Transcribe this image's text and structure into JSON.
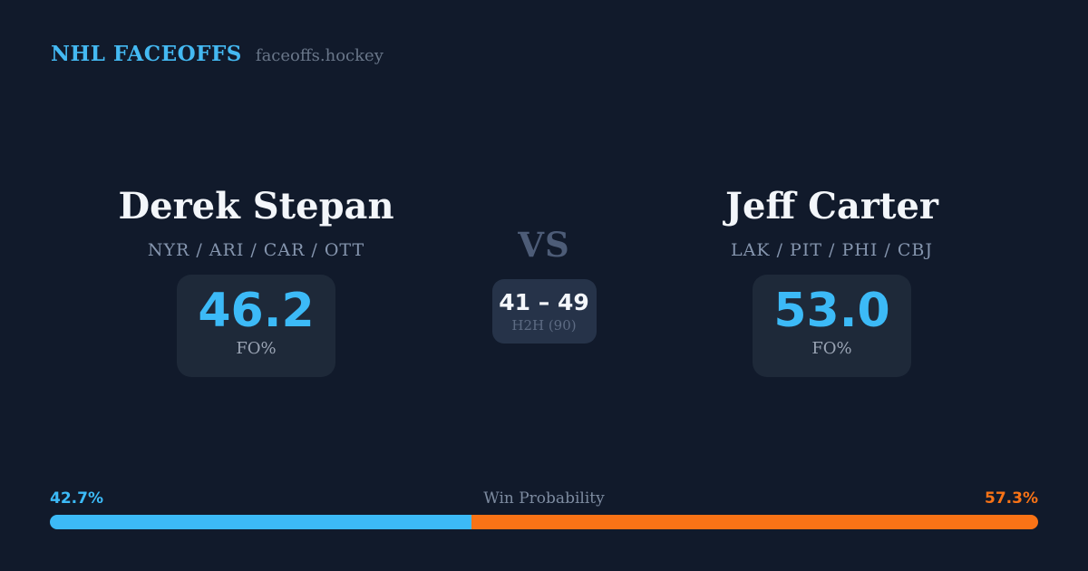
{
  "header": {
    "brand": "NHL FACEOFFS",
    "site": "faceoffs.hockey"
  },
  "matchup": {
    "player_left": {
      "name": "Derek Stepan",
      "teams": "NYR / ARI / CAR / OTT",
      "fo_value": "46.2",
      "fo_label": "FO%"
    },
    "vs_label": "VS",
    "h2h": {
      "score": "41 – 49",
      "label": "H2H (90)"
    },
    "player_right": {
      "name": "Jeff Carter",
      "teams": "LAK / PIT / PHI / CBJ",
      "fo_value": "53.0",
      "fo_label": "FO%"
    }
  },
  "win_probability": {
    "label": "Win Probability",
    "left_pct_label": "42.7%",
    "right_pct_label": "57.3%",
    "left_value": 42.7,
    "right_value": 57.3,
    "left_color": "#3cbaf7",
    "right_color": "#f97316"
  },
  "colors": {
    "background": "#111a2b",
    "stat_card": "#1e2939",
    "h2h_card": "#263349",
    "accent_blue": "#3cbaf7",
    "accent_orange": "#f97316",
    "brand_blue": "#44b9f2"
  }
}
